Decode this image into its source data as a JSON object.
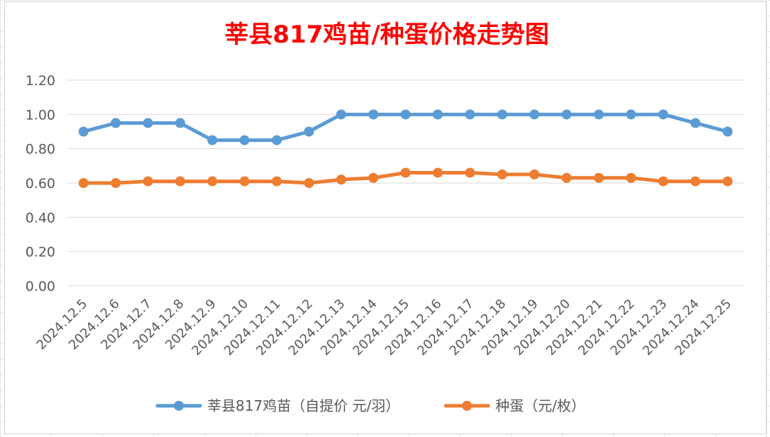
{
  "chart_data": {
    "type": "line",
    "title": "莘县817鸡苗/种蛋价格走势图",
    "categories": [
      "2024.12.5",
      "2024.12.6",
      "2024.12.7",
      "2024.12.8",
      "2024.12.9",
      "2024.12.10",
      "2024.12.11",
      "2024.12.12",
      "2024.12.13",
      "2024.12.14",
      "2024.12.15",
      "2024.12.16",
      "2024.12.17",
      "2024.12.18",
      "2024.12.19",
      "2024.12.20",
      "2024.12.21",
      "2024.12.22",
      "2024.12.23",
      "2024.12.24",
      "2024.12.25"
    ],
    "series": [
      {
        "name": "莘县817鸡苗（自提价 元/羽）",
        "color": "#5B9BD5",
        "values": [
          0.9,
          0.95,
          0.95,
          0.95,
          0.85,
          0.85,
          0.85,
          0.9,
          1.0,
          1.0,
          1.0,
          1.0,
          1.0,
          1.0,
          1.0,
          1.0,
          1.0,
          1.0,
          1.0,
          0.95,
          0.9
        ]
      },
      {
        "name": "种蛋（元/枚）",
        "color": "#ED7D31",
        "values": [
          0.6,
          0.6,
          0.61,
          0.61,
          0.61,
          0.61,
          0.61,
          0.6,
          0.62,
          0.63,
          0.66,
          0.66,
          0.66,
          0.65,
          0.65,
          0.63,
          0.63,
          0.63,
          0.61,
          0.61,
          0.61
        ]
      }
    ],
    "yticks": [
      "0.00",
      "0.20",
      "0.40",
      "0.60",
      "0.80",
      "1.00",
      "1.20"
    ],
    "ylim": [
      0,
      1.2
    ],
    "grid": true,
    "legend_position": "bottom",
    "title_color": "#FF0000"
  }
}
